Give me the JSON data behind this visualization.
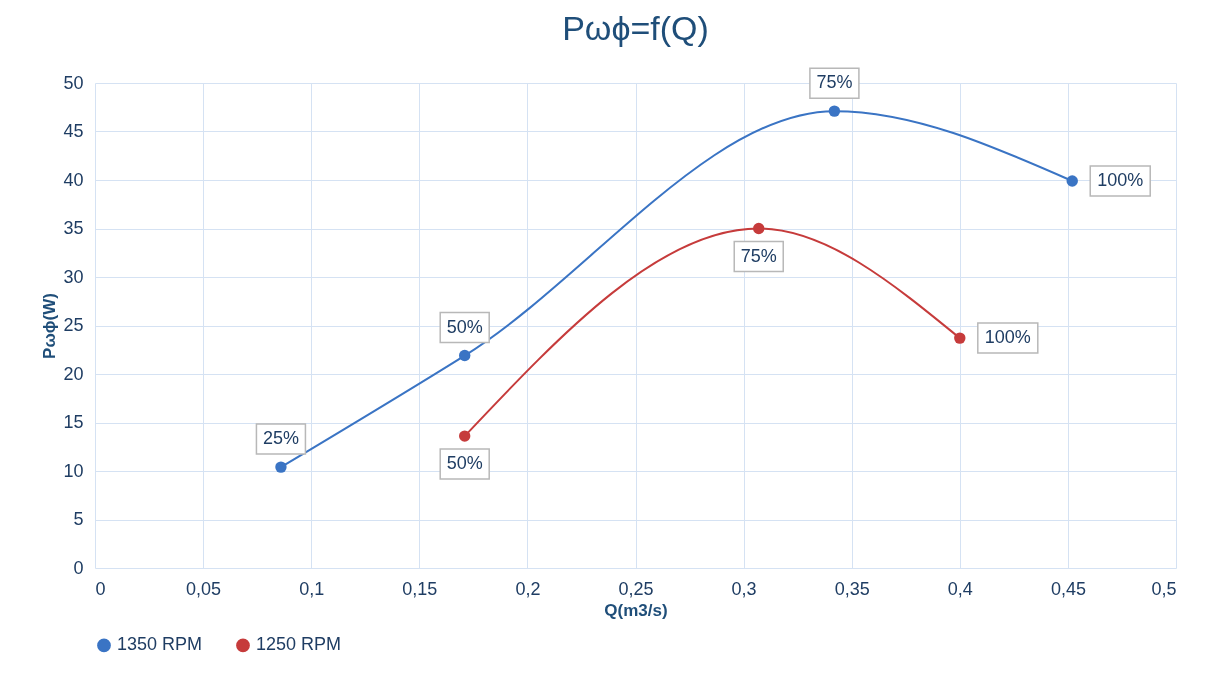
{
  "chart_data": {
    "type": "line",
    "title": "Pωϕ=f(Q)",
    "xlabel": "Q(m3/s)",
    "ylabel": "Pωϕ(W)",
    "xlim": [
      0,
      0.5
    ],
    "xticks": [
      0,
      {
        "value": 0.05,
        "label": "0,05"
      },
      {
        "value": 0.1,
        "label": "0,1"
      },
      {
        "value": 0.15,
        "label": "0,15"
      },
      {
        "value": 0.2,
        "label": "0,2"
      },
      {
        "value": 0.25,
        "label": "0,25"
      },
      {
        "value": 0.3,
        "label": "0,3"
      },
      {
        "value": 0.35,
        "label": "0,35"
      },
      {
        "value": 0.4,
        "label": "0,4"
      },
      {
        "value": 0.45,
        "label": "0,45"
      },
      {
        "value": 0.5,
        "label": "0,5"
      }
    ],
    "ylim": [
      0,
      50
    ],
    "yticks": [
      0,
      5,
      10,
      15,
      20,
      25,
      30,
      35,
      40,
      45,
      50
    ],
    "grid": true,
    "legend": "bottom",
    "marker": "circle",
    "series": [
      {
        "name": "1350 RPM",
        "color": "#3a74c4",
        "x": [
          0.086,
          0.171,
          0.342,
          0.452
        ],
        "values": [
          10.4,
          21.9,
          47.1,
          39.9
        ]
      },
      {
        "name": "1250 RPM",
        "color": "#c63b3b",
        "x": [
          0.171,
          0.307,
          0.4
        ],
        "values": [
          13.6,
          35.0,
          23.7
        ]
      }
    ],
    "annotations": [
      {
        "text": "25%",
        "x": 0.086,
        "y": 10.4
      },
      {
        "text": "50%",
        "x": 0.171,
        "y": 21.9
      },
      {
        "text": "75%",
        "x": 0.342,
        "y": 47.1
      },
      {
        "text": "100%",
        "x": 0.452,
        "y": 39.9
      },
      {
        "text": "50%",
        "x": 0.171,
        "y": 13.6
      },
      {
        "text": "75%",
        "x": 0.307,
        "y": 35.0
      },
      {
        "text": "100%",
        "x": 0.4,
        "y": 23.7
      }
    ]
  }
}
